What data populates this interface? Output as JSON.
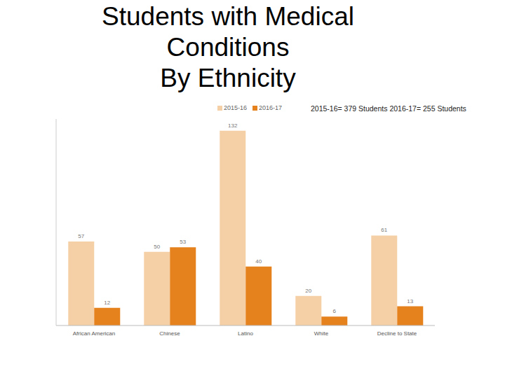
{
  "chart_data": {
    "type": "bar",
    "title": "Students with Medical\nConditions\nBy Ethnicity",
    "annotation": "2015-16= 379 Students   2016-17= 255 Students",
    "categories": [
      "African American",
      "Chinese",
      "Latino",
      "White",
      "Decline to State"
    ],
    "series": [
      {
        "name": "2015-16",
        "color": "#f5cfa5",
        "values": [
          57,
          50,
          132,
          20,
          61
        ]
      },
      {
        "name": "2016-17",
        "color": "#e6821e",
        "values": [
          12,
          53,
          40,
          6,
          13
        ]
      }
    ],
    "ylim": [
      0,
      140
    ],
    "data_labels": true,
    "tick_labels": "x",
    "legend": "top"
  }
}
